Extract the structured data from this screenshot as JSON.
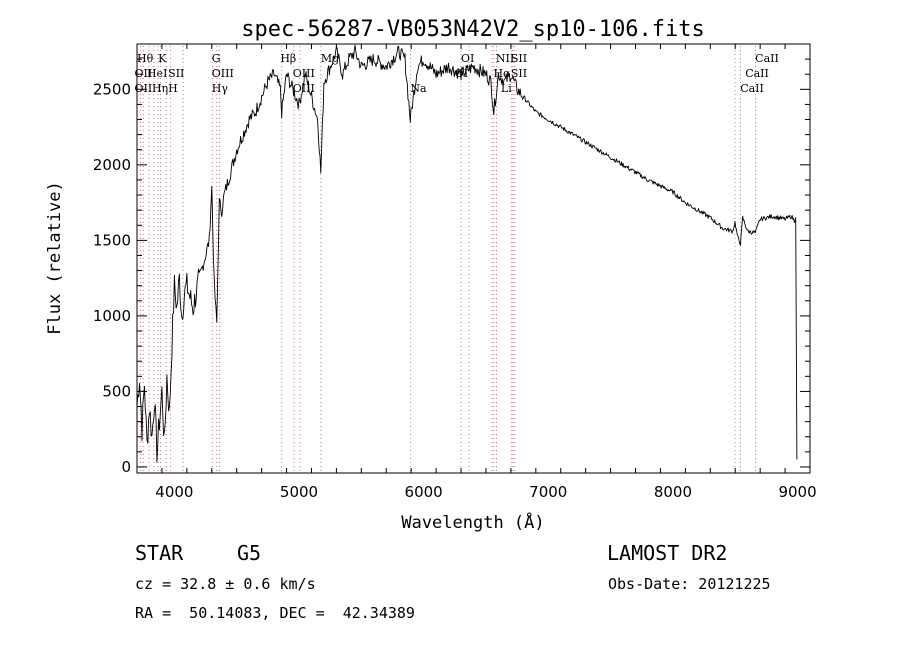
{
  "chart_data": {
    "type": "line",
    "title": "spec-56287-VB053N42V2_sp10-106.fits",
    "xlabel": "Wavelength (Å)",
    "ylabel": "Flux (relative)",
    "xlim": [
      3700,
      9100
    ],
    "ylim": [
      -40,
      2800
    ],
    "xticks": [
      4000,
      5000,
      6000,
      7000,
      8000,
      9000
    ],
    "yticks": [
      0,
      500,
      1000,
      1500,
      2000,
      2500
    ],
    "grid": false,
    "series": [
      {
        "color": "#000000",
        "x": [
          3700,
          3720,
          3740,
          3760,
          3780,
          3800,
          3820,
          3840,
          3860,
          3880,
          3900,
          3920,
          3940,
          3960,
          3980,
          4000,
          4020,
          4040,
          4060,
          4080,
          4100,
          4150,
          4200,
          4250,
          4280,
          4300,
          4320,
          4340,
          4360,
          4380,
          4400,
          4450,
          4500,
          4550,
          4600,
          4650,
          4700,
          4750,
          4800,
          4850,
          4861,
          4900,
          4950,
          5000,
          5050,
          5100,
          5150,
          5175,
          5200,
          5250,
          5300,
          5350,
          5400,
          5450,
          5500,
          5600,
          5700,
          5800,
          5850,
          5893,
          5950,
          6000,
          6100,
          6200,
          6300,
          6400,
          6500,
          6540,
          6563,
          6600,
          6650,
          6700,
          6750,
          6800,
          6900,
          7000,
          7100,
          7200,
          7300,
          7400,
          7500,
          7600,
          7700,
          7800,
          7900,
          8000,
          8100,
          8200,
          8300,
          8400,
          8480,
          8498,
          8520,
          8542,
          8560,
          8600,
          8662,
          8700,
          8800,
          8900,
          8950,
          8975,
          8985,
          8995
        ],
        "y": [
          400,
          600,
          250,
          550,
          150,
          400,
          200,
          450,
          100,
          300,
          500,
          150,
          600,
          350,
          800,
          1200,
          1050,
          1250,
          1000,
          1150,
          1200,
          1050,
          1250,
          1400,
          1500,
          1850,
          1200,
          950,
          1750,
          1700,
          1800,
          1950,
          2100,
          2200,
          2300,
          2350,
          2450,
          2550,
          2600,
          2500,
          2350,
          2600,
          2500,
          2400,
          2600,
          2450,
          2300,
          1950,
          2550,
          2650,
          2750,
          2600,
          2700,
          2750,
          2650,
          2700,
          2650,
          2750,
          2700,
          2300,
          2650,
          2700,
          2600,
          2650,
          2600,
          2650,
          2600,
          2550,
          2350,
          2600,
          2550,
          2600,
          2500,
          2450,
          2350,
          2300,
          2250,
          2200,
          2150,
          2100,
          2050,
          2000,
          1950,
          1900,
          1860,
          1820,
          1750,
          1700,
          1650,
          1580,
          1560,
          1620,
          1520,
          1480,
          1650,
          1560,
          1550,
          1640,
          1660,
          1640,
          1660,
          1630,
          1650,
          50
        ]
      }
    ],
    "lines": [
      {
        "wl": 3727,
        "labels": [
          "OII",
          "OII"
        ]
      },
      {
        "wl": 3750,
        "labels": [
          "",
          ""
        ]
      },
      {
        "wl": 3797,
        "labels": [
          "Hθ",
          ""
        ]
      },
      {
        "wl": 3835,
        "labels": [
          "Hη",
          ""
        ]
      },
      {
        "wl": 3869,
        "labels": [
          "HeI",
          ""
        ]
      },
      {
        "wl": 3889,
        "labels": [
          "",
          ""
        ]
      },
      {
        "wl": 3934,
        "labels": [
          "K",
          ""
        ]
      },
      {
        "wl": 3968,
        "labels": [
          "H",
          ""
        ]
      },
      {
        "wl": 4070,
        "labels": [
          "SII",
          ""
        ]
      },
      {
        "wl": 4304,
        "labels": [
          "G",
          ""
        ]
      },
      {
        "wl": 4340,
        "labels": [
          "Hγ",
          ""
        ]
      },
      {
        "wl": 4363,
        "labels": [
          "OIII",
          ""
        ]
      },
      {
        "wl": 4861,
        "labels": [
          "Hβ",
          ""
        ]
      },
      {
        "wl": 4959,
        "labels": [
          "OIII",
          "OIII"
        ]
      },
      {
        "wl": 5007,
        "labels": [
          "",
          ""
        ]
      },
      {
        "wl": 5175,
        "labels": [
          "Mg",
          ""
        ]
      },
      {
        "wl": 5893,
        "labels": [
          "Na",
          ""
        ]
      },
      {
        "wl": 6300,
        "labels": [
          "OI",
          "OI"
        ]
      },
      {
        "wl": 6364,
        "labels": [
          "",
          ""
        ]
      },
      {
        "wl": 6548,
        "labels": [
          "NII",
          ""
        ]
      },
      {
        "wl": 6563,
        "labels": [
          "Hα",
          ""
        ]
      },
      {
        "wl": 6584,
        "labels": [
          "",
          ""
        ]
      },
      {
        "wl": 6707,
        "labels": [
          "Li",
          ""
        ]
      },
      {
        "wl": 6717,
        "labels": [
          "SII",
          "SII"
        ]
      },
      {
        "wl": 6731,
        "labels": [
          "",
          ""
        ]
      },
      {
        "wl": 8498,
        "labels": [
          "CaII",
          ""
        ]
      },
      {
        "wl": 8542,
        "labels": [
          "CaII",
          ""
        ]
      },
      {
        "wl": 8662,
        "labels": [
          "CaII",
          ""
        ]
      }
    ],
    "line_label_rows": [
      {
        "wl": 3700,
        "text": "Hθ",
        "row": 0
      },
      {
        "wl": 3870,
        "text": "K",
        "row": 0
      },
      {
        "wl": 3680,
        "text": "OII",
        "row": 1
      },
      {
        "wl": 3780,
        "text": "HeI",
        "row": 1
      },
      {
        "wl": 3950,
        "text": "SII",
        "row": 1
      },
      {
        "wl": 3680,
        "text": "OII",
        "row": 2
      },
      {
        "wl": 3820,
        "text": "Hη",
        "row": 2
      },
      {
        "wl": 3950,
        "text": "H",
        "row": 2
      },
      {
        "wl": 4300,
        "text": "G",
        "row": 0
      },
      {
        "wl": 4300,
        "text": "OIII",
        "row": 1
      },
      {
        "wl": 4300,
        "text": "Hγ",
        "row": 2
      },
      {
        "wl": 4850,
        "text": "Hβ",
        "row": 0
      },
      {
        "wl": 4950,
        "text": "OIII",
        "row": 1
      },
      {
        "wl": 4950,
        "text": "OIII",
        "row": 2
      },
      {
        "wl": 5175,
        "text": "Mg",
        "row": 0
      },
      {
        "wl": 5893,
        "text": "Na",
        "row": 2
      },
      {
        "wl": 6300,
        "text": "OI",
        "row": 0
      },
      {
        "wl": 6250,
        "text": "OI",
        "row": 1
      },
      {
        "wl": 6580,
        "text": "NII",
        "row": 0
      },
      {
        "wl": 6700,
        "text": "SII",
        "row": 0
      },
      {
        "wl": 6560,
        "text": "Hα",
        "row": 1
      },
      {
        "wl": 6700,
        "text": "SII",
        "row": 1
      },
      {
        "wl": 6620,
        "text": "Li",
        "row": 2
      },
      {
        "wl": 8660,
        "text": "CaII",
        "row": 0
      },
      {
        "wl": 8580,
        "text": "CaII",
        "row": 1
      },
      {
        "wl": 8540,
        "text": "CaII",
        "row": 2
      }
    ]
  },
  "info": {
    "class_label": "STAR",
    "subclass": "G5",
    "survey": "LAMOST DR2",
    "cz": "cz = 32.8 ± 0.6 km/s",
    "obs_date": "Obs-Date: 20121225",
    "coords": "RA =  50.14083, DEC =  42.34389"
  }
}
